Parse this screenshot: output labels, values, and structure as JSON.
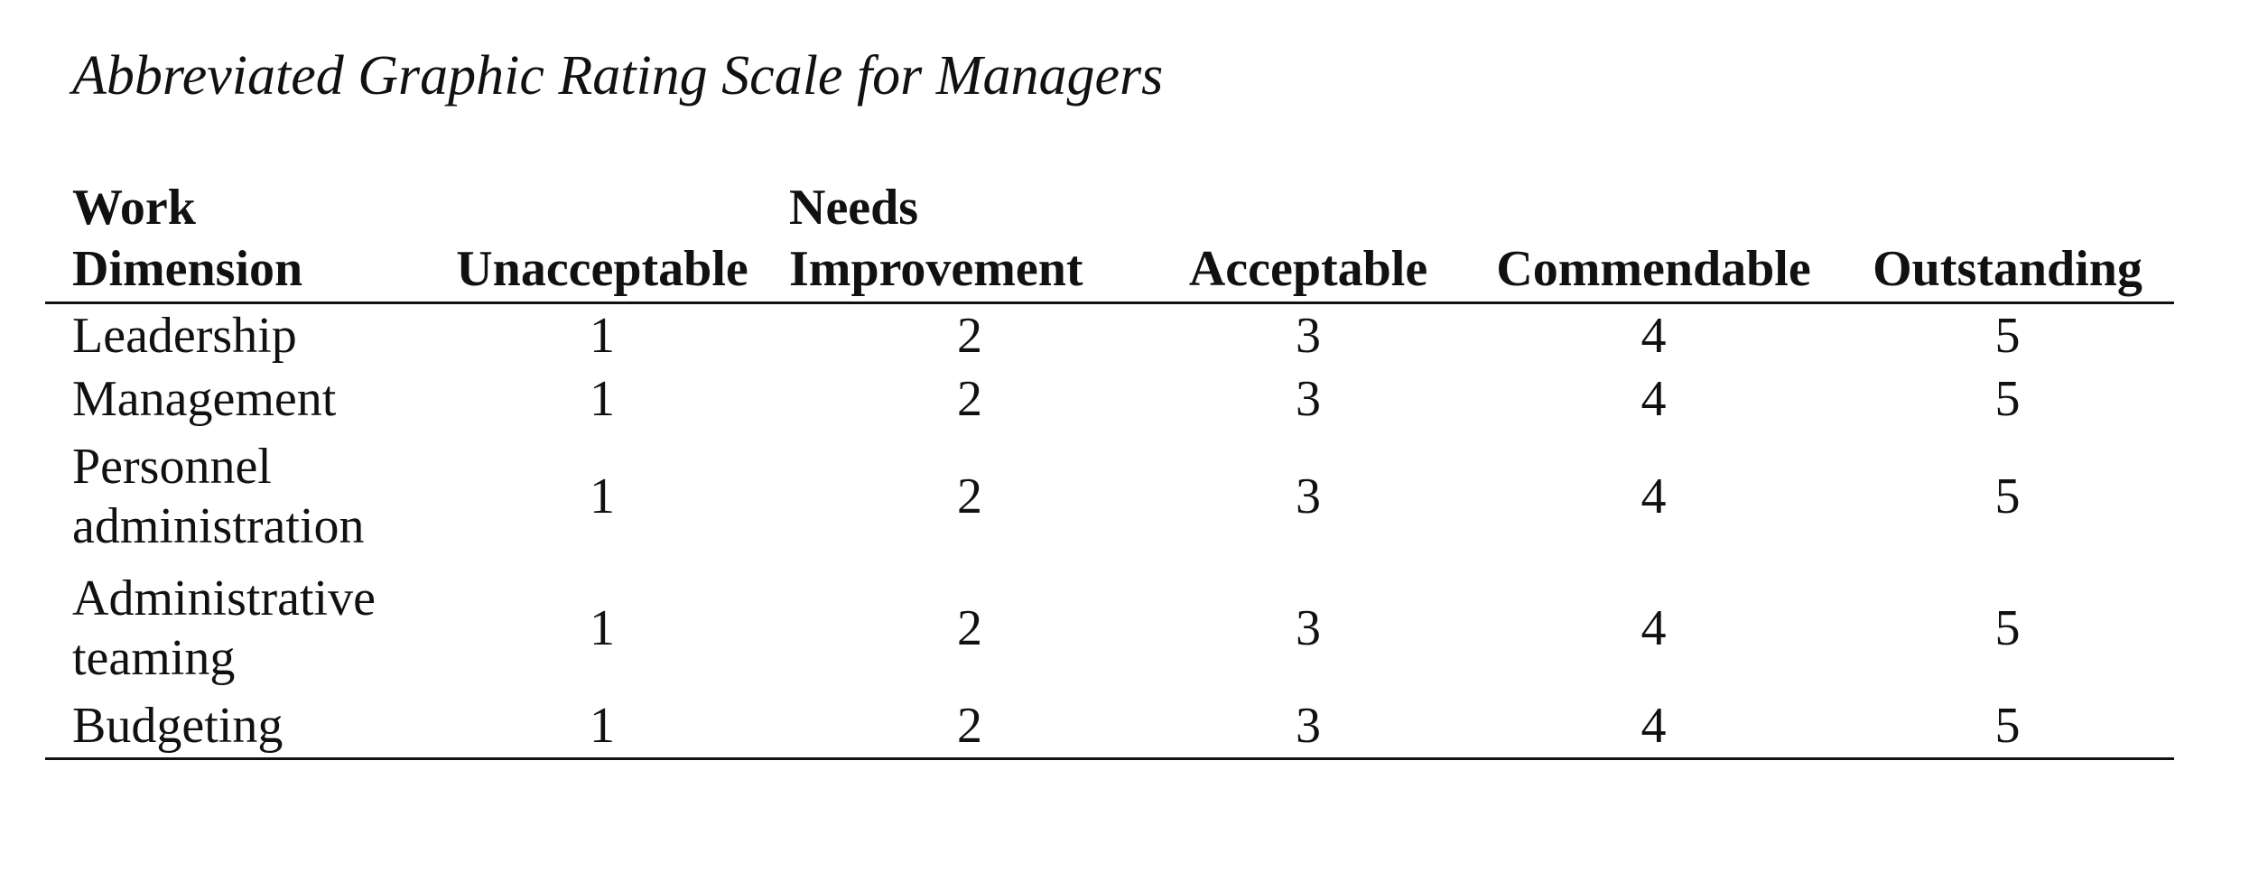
{
  "caption": "Abbreviated Graphic Rating Scale for Managers",
  "table": {
    "headers": [
      {
        "line1": "Work",
        "line2": "Dimension"
      },
      {
        "line1": "",
        "line2": "Unacceptable"
      },
      {
        "line1": "Needs",
        "line2": "Improvement"
      },
      {
        "line1": "",
        "line2": "Acceptable"
      },
      {
        "line1": "",
        "line2": "Commendable"
      },
      {
        "line1": "",
        "line2": "Outstanding"
      }
    ],
    "rows": [
      {
        "dimension_line1": "Leadership",
        "dimension_line2": "",
        "ratings": [
          "1",
          "2",
          "3",
          "4",
          "5"
        ]
      },
      {
        "dimension_line1": "Management",
        "dimension_line2": "",
        "ratings": [
          "1",
          "2",
          "3",
          "4",
          "5"
        ]
      },
      {
        "dimension_line1": "Personnel",
        "dimension_line2": "administration",
        "ratings": [
          "1",
          "2",
          "3",
          "4",
          "5"
        ]
      },
      {
        "dimension_line1": "Administrative",
        "dimension_line2": "teaming",
        "ratings": [
          "1",
          "2",
          "3",
          "4",
          "5"
        ]
      },
      {
        "dimension_line1": "Budgeting",
        "dimension_line2": "",
        "ratings": [
          "1",
          "2",
          "3",
          "4",
          "5"
        ]
      }
    ]
  }
}
